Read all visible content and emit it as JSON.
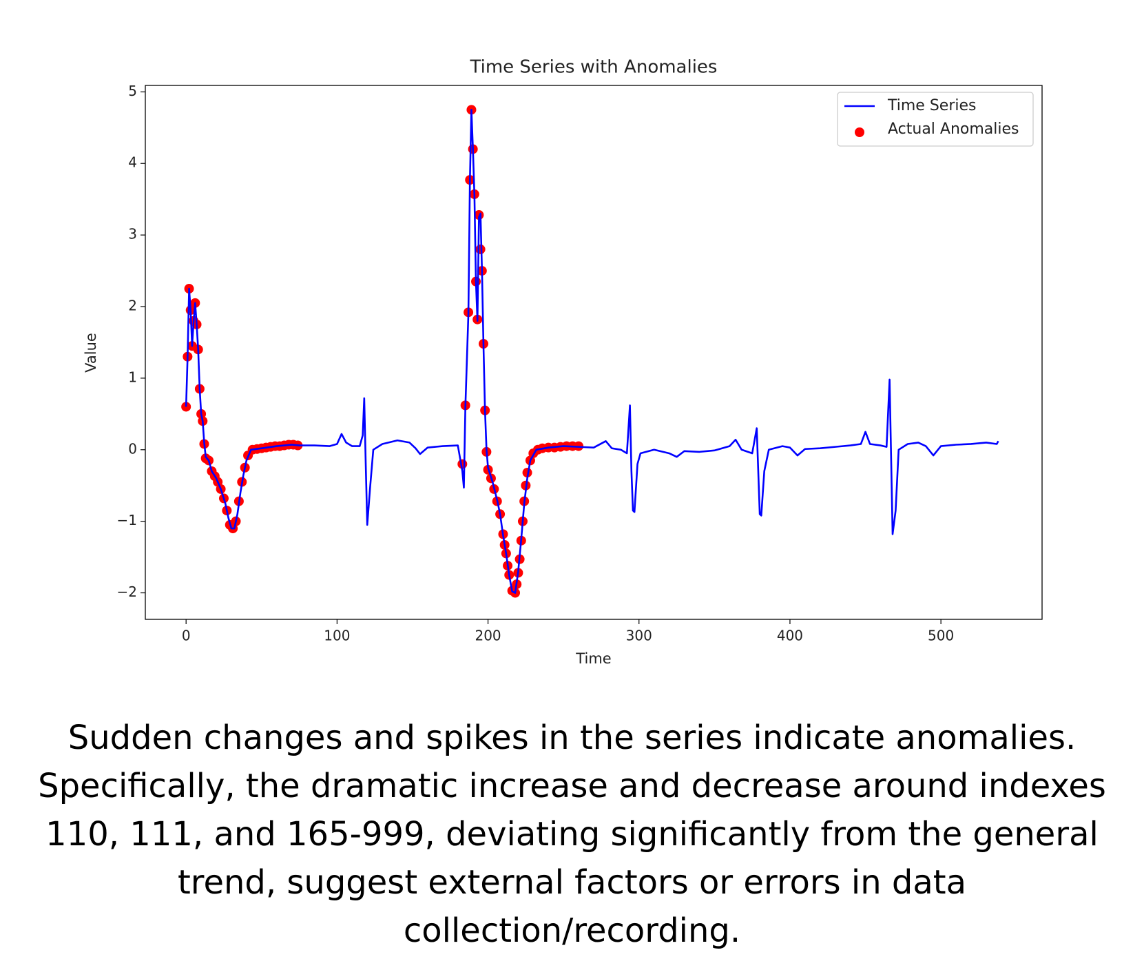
{
  "chart_data": {
    "type": "line",
    "title": "Time Series with Anomalies",
    "xlabel": "Time",
    "ylabel": "Value",
    "xlim": [
      -27,
      567
    ],
    "ylim": [
      -2.37,
      5.09
    ],
    "xticks": [
      0,
      100,
      200,
      300,
      400,
      500
    ],
    "yticks": [
      {
        "value": -2,
        "label": "−2"
      },
      {
        "value": -1,
        "label": "−1"
      },
      0,
      1,
      2,
      3,
      4,
      5
    ],
    "legend": "upper right",
    "series": [
      {
        "name": "Time Series",
        "type": "line",
        "color": "#0000ff",
        "x": [
          0,
          1,
          2,
          3,
          4,
          5,
          6,
          7,
          8,
          9,
          10,
          11,
          12,
          13,
          15,
          17,
          20,
          23,
          26,
          28,
          30,
          32,
          34,
          36,
          38,
          40,
          43,
          50,
          60,
          70,
          75,
          85,
          95,
          100,
          103,
          106,
          110,
          115,
          117,
          118,
          119,
          120,
          122,
          124,
          130,
          140,
          148,
          152,
          155,
          160,
          170,
          180,
          183,
          184,
          185,
          187,
          188,
          189,
          190,
          191,
          192,
          193,
          194,
          195,
          196,
          197,
          198,
          199,
          200,
          203,
          206,
          208,
          210,
          212,
          214,
          216,
          218,
          220,
          222,
          224,
          226,
          228,
          232,
          240,
          250,
          260,
          270,
          278,
          282,
          288,
          292,
          294,
          295,
          296,
          297,
          299,
          301,
          310,
          320,
          325,
          330,
          340,
          350,
          360,
          364,
          368,
          375,
          378,
          380,
          381,
          383,
          386,
          395,
          400,
          405,
          410,
          420,
          430,
          440,
          447,
          450,
          453,
          460,
          464,
          466,
          468,
          470,
          472,
          478,
          485,
          490,
          495,
          500,
          510,
          520,
          530,
          537,
          538
        ],
        "values": [
          0.6,
          1.3,
          2.25,
          1.95,
          1.45,
          1.8,
          2.05,
          1.75,
          1.4,
          0.85,
          0.5,
          0.4,
          0.1,
          -0.1,
          -0.15,
          -0.3,
          -0.4,
          -0.55,
          -0.75,
          -0.95,
          -1.1,
          -1.1,
          -0.9,
          -0.6,
          -0.35,
          -0.15,
          0,
          0.02,
          0.05,
          0.07,
          0.06,
          0.06,
          0.05,
          0.08,
          0.22,
          0.1,
          0.05,
          0.05,
          0.2,
          0.72,
          -0.2,
          -1.05,
          -0.5,
          0,
          0.08,
          0.13,
          0.1,
          0.02,
          -0.06,
          0.03,
          0.05,
          0.06,
          -0.3,
          -0.53,
          0.6,
          1.9,
          3.75,
          4.75,
          4.2,
          3.55,
          2.35,
          1.8,
          3.25,
          3.3,
          2.5,
          1.45,
          0.55,
          0,
          -0.25,
          -0.45,
          -0.7,
          -0.9,
          -1.2,
          -1.45,
          -1.75,
          -1.98,
          -2.0,
          -1.7,
          -1.25,
          -0.75,
          -0.4,
          -0.15,
          0,
          0.03,
          0.05,
          0.04,
          0.03,
          0.12,
          0.02,
          0,
          -0.05,
          0.62,
          -0.3,
          -0.85,
          -0.87,
          -0.2,
          -0.05,
          0,
          -0.05,
          -0.1,
          -0.02,
          -0.03,
          -0.01,
          0.05,
          0.14,
          0,
          -0.05,
          0.3,
          -0.9,
          -0.92,
          -0.3,
          0,
          0.05,
          0.03,
          -0.08,
          0.01,
          0.02,
          0.04,
          0.06,
          0.08,
          0.25,
          0.08,
          0.06,
          0.04,
          0.98,
          -1.18,
          -0.85,
          0,
          0.08,
          0.1,
          0.05,
          -0.08,
          0.05,
          0.07,
          0.08,
          0.1,
          0.08,
          0.12
        ]
      },
      {
        "name": "Actual Anomalies",
        "type": "scatter",
        "color": "#ff0000",
        "x": [
          0,
          1,
          2,
          3,
          4,
          5,
          6,
          7,
          8,
          9,
          10,
          11,
          12,
          13,
          15,
          17,
          19,
          21,
          23,
          25,
          27,
          29,
          31,
          33,
          35,
          37,
          39,
          41,
          44,
          47,
          50,
          53,
          56,
          59,
          62,
          65,
          68,
          71,
          74,
          183,
          185,
          187,
          188,
          189,
          190,
          191,
          192,
          193,
          194,
          195,
          196,
          197,
          198,
          199,
          200,
          202,
          204,
          206,
          208,
          210,
          211,
          212,
          213,
          214,
          216,
          218,
          219,
          220,
          221,
          222,
          223,
          224,
          225,
          226,
          228,
          230,
          233,
          236,
          240,
          244,
          248,
          252,
          256,
          260
        ],
        "values": [
          0.6,
          1.3,
          2.25,
          1.95,
          1.45,
          1.8,
          2.05,
          1.75,
          1.4,
          0.85,
          0.5,
          0.4,
          0.08,
          -0.12,
          -0.15,
          -0.3,
          -0.37,
          -0.45,
          -0.55,
          -0.68,
          -0.85,
          -1.05,
          -1.1,
          -1.0,
          -0.72,
          -0.45,
          -0.25,
          -0.08,
          0,
          0.01,
          0.02,
          0.03,
          0.04,
          0.05,
          0.05,
          0.06,
          0.07,
          0.07,
          0.06,
          -0.2,
          0.62,
          1.92,
          3.77,
          4.75,
          4.2,
          3.57,
          2.35,
          1.82,
          3.28,
          2.8,
          2.5,
          1.48,
          0.55,
          -0.03,
          -0.28,
          -0.4,
          -0.55,
          -0.72,
          -0.9,
          -1.18,
          -1.33,
          -1.45,
          -1.62,
          -1.75,
          -1.97,
          -2.0,
          -1.88,
          -1.72,
          -1.53,
          -1.27,
          -1.0,
          -0.72,
          -0.5,
          -0.32,
          -0.15,
          -0.05,
          0,
          0.02,
          0.03,
          0.03,
          0.04,
          0.05,
          0.05,
          0.05
        ]
      }
    ]
  },
  "caption": "Sudden changes and spikes in the series indicate anomalies. Specifically, the dramatic increase and decrease around indexes 110, 111, and 165-999, deviating significantly from the general trend, suggest external factors or errors in data collection/recording."
}
